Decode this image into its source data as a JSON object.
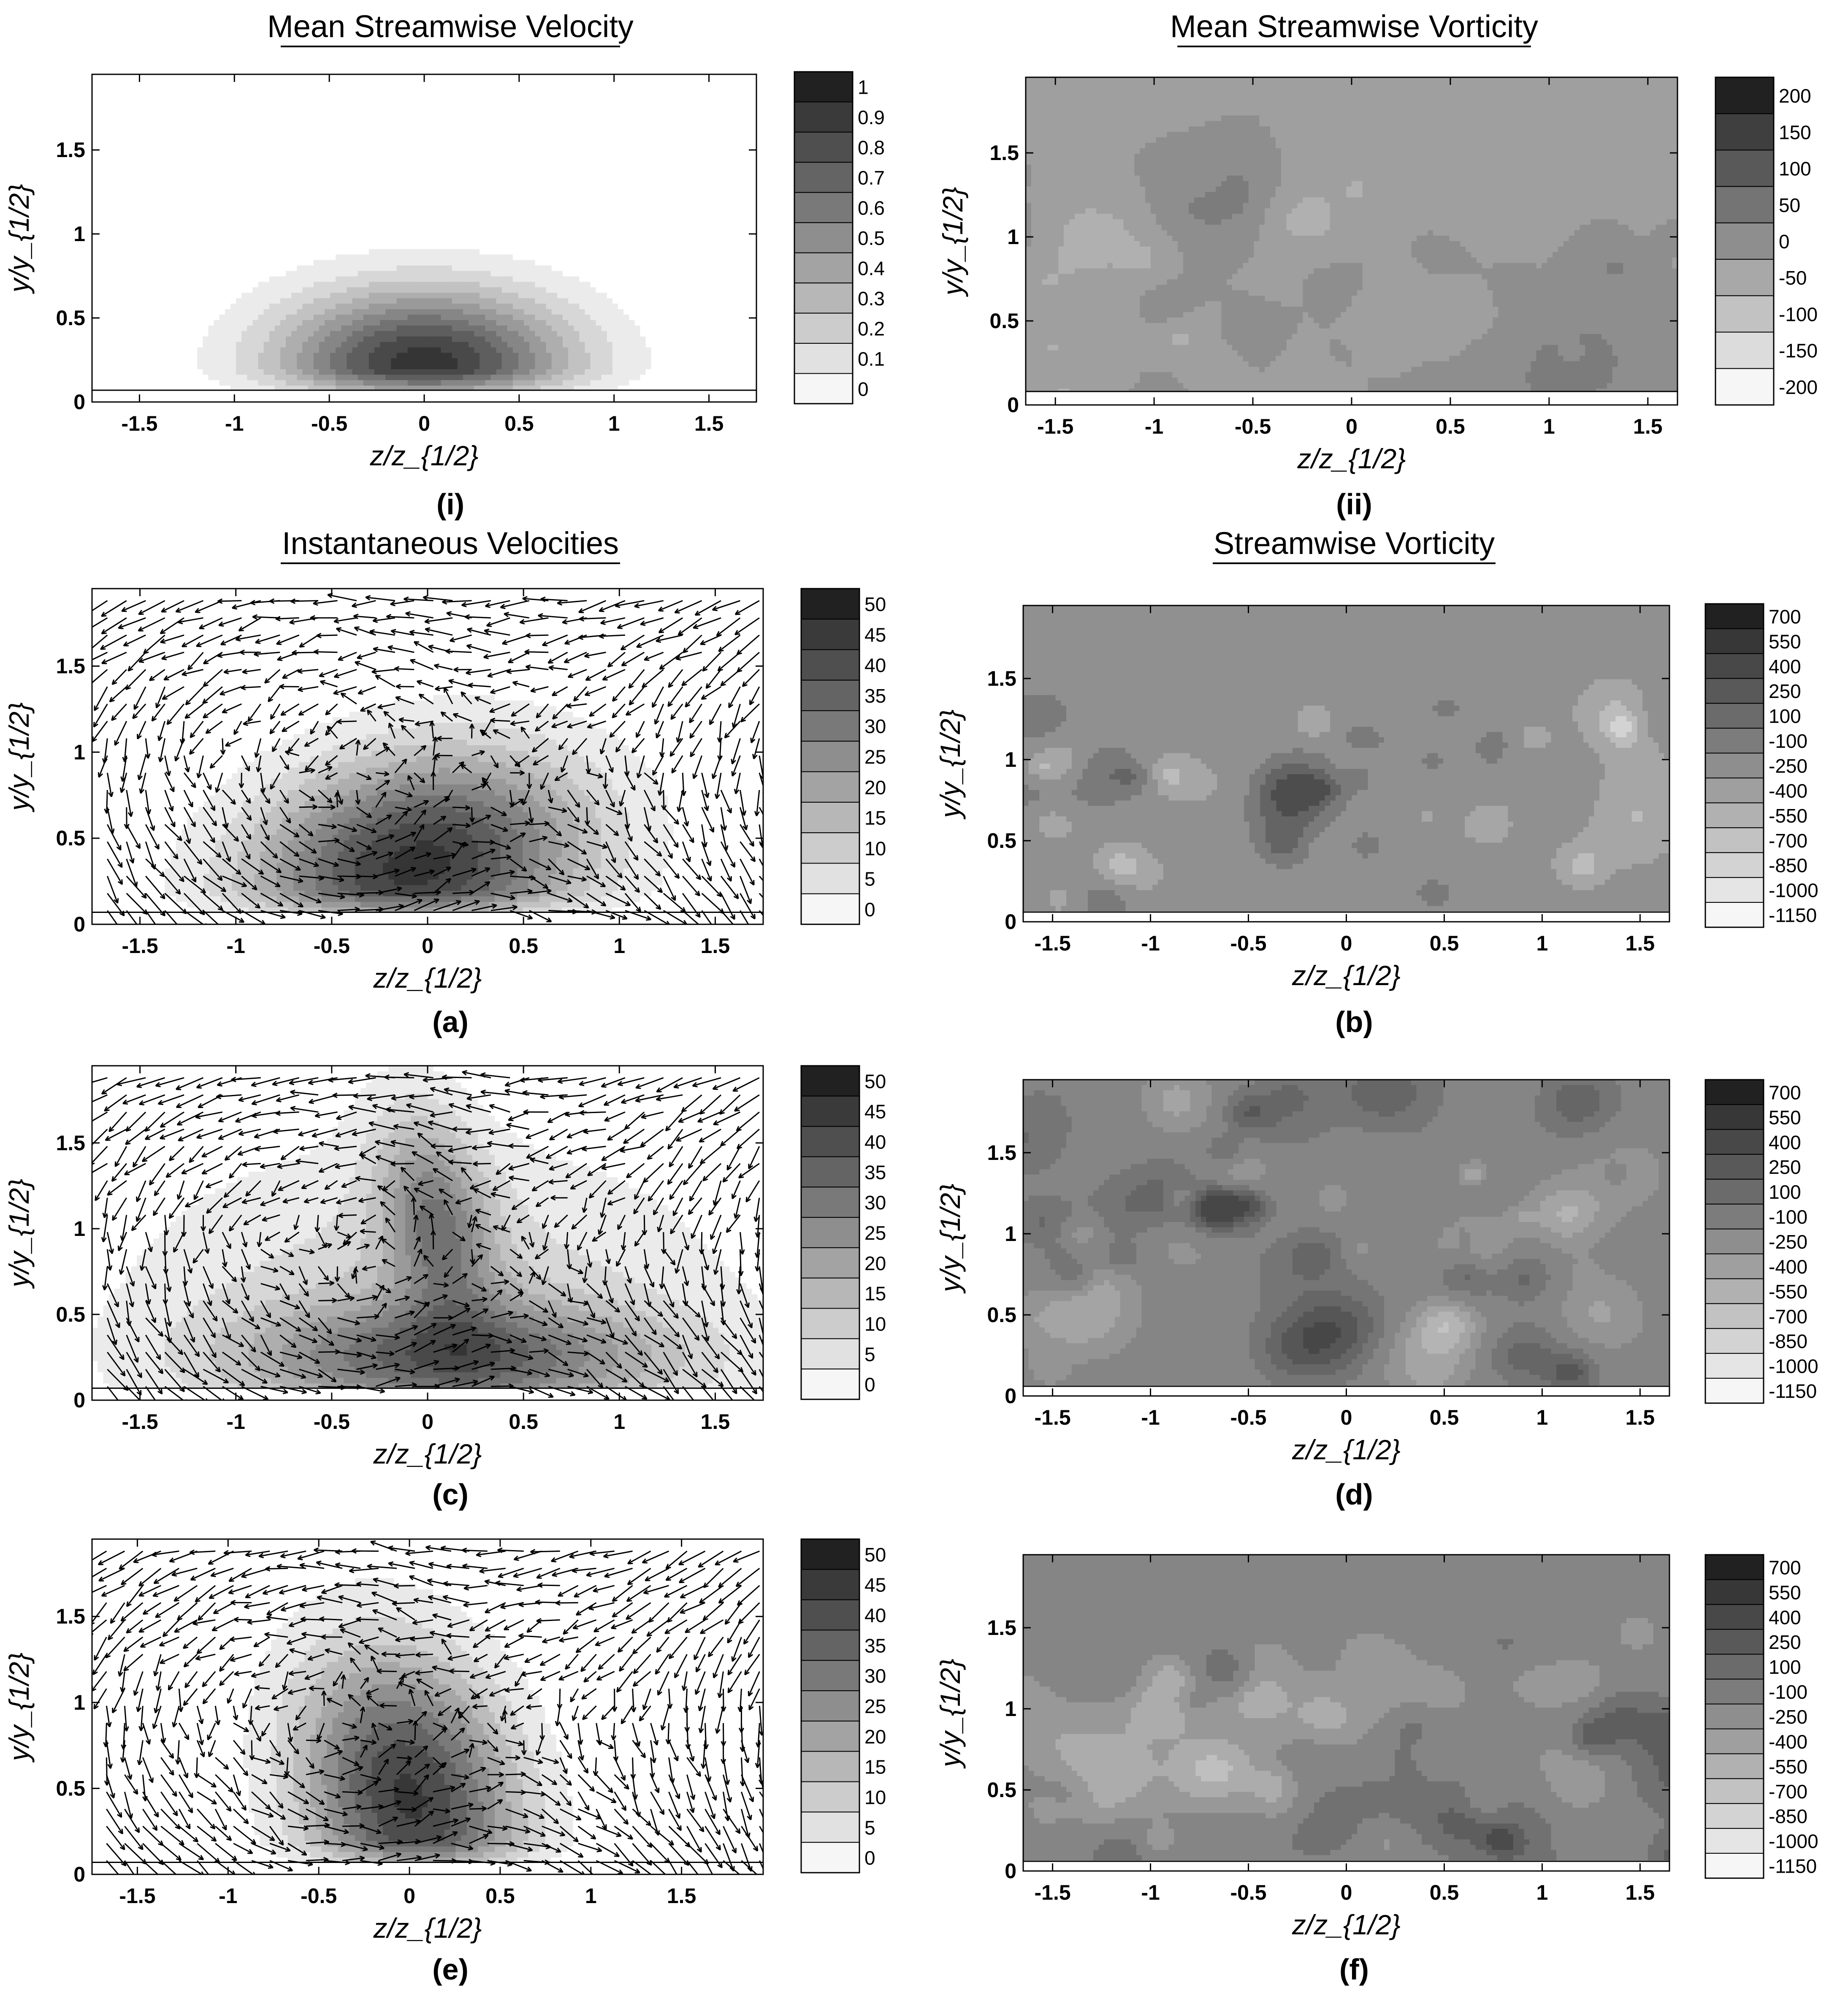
{
  "chart_data": [
    {
      "id": "i",
      "caption": "(i)",
      "title": "Mean Streamwise Velocity",
      "type": "contour",
      "xlabel": "z/z_{1/2}",
      "ylabel": "y/y_{1/2}",
      "xlim": [
        -1.75,
        1.75
      ],
      "ylim": [
        0,
        1.95
      ],
      "xticks": [
        -1.5,
        -1,
        -0.5,
        0,
        0.5,
        1,
        1.5
      ],
      "xtick_labels": [
        "-1.5",
        "-1",
        "-0.5",
        "0",
        "0.5",
        "1",
        "1.5"
      ],
      "yticks": [
        0,
        0.5,
        1,
        1.5
      ],
      "ytick_labels": [
        "0",
        "0.5",
        "1",
        "1.5"
      ],
      "colorbar_labels": [
        "1",
        "0.9",
        "0.8",
        "0.7",
        "0.6",
        "0.5",
        "0.4",
        "0.3",
        "0.2",
        "0.1",
        "0"
      ],
      "field": {
        "kind": "gauss",
        "cx": 0,
        "cy": 0.22,
        "sx": 0.55,
        "sy": 0.32,
        "amp": 1.05,
        "ymin": 0.07
      },
      "levels": [
        0.1,
        0.2,
        0.3,
        0.4,
        0.5,
        0.6,
        0.7,
        0.8,
        0.9,
        1.0
      ],
      "vectors": false
    },
    {
      "id": "ii",
      "caption": "(ii)",
      "title": "Mean Streamwise Vorticity",
      "type": "contour",
      "xlabel": "z/z_{1/2}",
      "ylabel": "y/y_{1/2}",
      "xlim": [
        -1.65,
        1.65
      ],
      "ylim": [
        0,
        1.95
      ],
      "xticks": [
        -1.5,
        -1,
        -0.5,
        0,
        0.5,
        1,
        1.5
      ],
      "xtick_labels": [
        "-1.5",
        "-1",
        "-0.5",
        "0",
        "0.5",
        "1",
        "1.5"
      ],
      "yticks": [
        0,
        0.5,
        1,
        1.5
      ],
      "ytick_labels": [
        "0",
        "0.5",
        "1",
        "1.5"
      ],
      "colorbar_labels": [
        "200",
        "150",
        "100",
        "50",
        "0",
        "-50",
        "-100",
        "-150",
        "-200"
      ],
      "field": {
        "kind": "noise",
        "base": 0,
        "scale": 60,
        "seed": 11,
        "ymin": 0.08
      },
      "levels": [
        -150,
        -100,
        -50,
        0,
        50,
        100,
        150,
        200
      ],
      "vectors": false
    },
    {
      "id": "a",
      "caption": "(a)",
      "title": "Instantaneous Velocities",
      "type": "contour+quiver",
      "xlabel": "z/z_{1/2}",
      "ylabel": "y/y_{1/2}",
      "xlim": [
        -1.75,
        1.75
      ],
      "ylim": [
        0,
        1.95
      ],
      "xticks": [
        -1.5,
        -1,
        -0.5,
        0,
        0.5,
        1,
        1.5
      ],
      "xtick_labels": [
        "-1.5",
        "-1",
        "-0.5",
        "0",
        "0.5",
        "1",
        "1.5"
      ],
      "yticks": [
        0,
        0.5,
        1,
        1.5
      ],
      "ytick_labels": [
        "0",
        "0.5",
        "1",
        "1.5"
      ],
      "colorbar_labels": [
        "50",
        "45",
        "40",
        "35",
        "30",
        "25",
        "20",
        "15",
        "10",
        "5",
        "0"
      ],
      "field": {
        "kind": "gauss",
        "cx": -0.05,
        "cy": 0.35,
        "sx": 0.6,
        "sy": 0.45,
        "amp": 52,
        "skew": 0.25,
        "ymin": 0.07
      },
      "levels": [
        5,
        10,
        15,
        20,
        25,
        30,
        35,
        40,
        45,
        50
      ],
      "vectors": true
    },
    {
      "id": "b",
      "caption": "(b)",
      "title": "Streamwise Vorticity",
      "type": "contour",
      "xlabel": "z/z_{1/2}",
      "ylabel": "y/y_{1/2}",
      "xlim": [
        -1.65,
        1.65
      ],
      "ylim": [
        0,
        1.95
      ],
      "xticks": [
        -1.5,
        -1,
        -0.5,
        0,
        0.5,
        1,
        1.5
      ],
      "xtick_labels": [
        "-1.5",
        "-1",
        "-0.5",
        "0",
        "0.5",
        "1",
        "1.5"
      ],
      "yticks": [
        0,
        0.5,
        1,
        1.5
      ],
      "ytick_labels": [
        "0",
        "0.5",
        "1",
        "1.5"
      ],
      "colorbar_labels": [
        "700",
        "550",
        "400",
        "250",
        "100",
        "-100",
        "-250",
        "-400",
        "-550",
        "-700",
        "-850",
        "-1000",
        "-1150"
      ],
      "field": {
        "kind": "noise",
        "base": 0,
        "scale": 280,
        "seed": 23,
        "ymin": 0.06,
        "top": 1.3
      },
      "levels": [
        -400,
        -250,
        -100,
        100,
        250,
        400
      ],
      "vectors": false
    },
    {
      "id": "c",
      "caption": "(c)",
      "title": "",
      "type": "contour+quiver",
      "xlabel": "z/z_{1/2}",
      "ylabel": "y/y_{1/2}",
      "xlim": [
        -1.75,
        1.75
      ],
      "ylim": [
        0,
        1.95
      ],
      "xticks": [
        -1.5,
        -1,
        -0.5,
        0,
        0.5,
        1,
        1.5
      ],
      "xtick_labels": [
        "-1.5",
        "-1",
        "-0.5",
        "0",
        "0.5",
        "1",
        "1.5"
      ],
      "yticks": [
        0,
        0.5,
        1,
        1.5
      ],
      "ytick_labels": [
        "0",
        "0.5",
        "1",
        "1.5"
      ],
      "colorbar_labels": [
        "50",
        "45",
        "40",
        "35",
        "30",
        "25",
        "20",
        "15",
        "10",
        "5",
        "0"
      ],
      "field": {
        "kind": "mushroom",
        "amp": 50,
        "ymin": 0.07
      },
      "levels": [
        5,
        10,
        15,
        20,
        25,
        30,
        35,
        40,
        45,
        50
      ],
      "vectors": true
    },
    {
      "id": "d",
      "caption": "(d)",
      "title": "",
      "type": "contour",
      "xlabel": "z/z_{1/2}",
      "ylabel": "y/y_{1/2}",
      "xlim": [
        -1.65,
        1.65
      ],
      "ylim": [
        0,
        1.95
      ],
      "xticks": [
        -1.5,
        -1,
        -0.5,
        0,
        0.5,
        1,
        1.5
      ],
      "xtick_labels": [
        "-1.5",
        "-1",
        "-0.5",
        "0",
        "0.5",
        "1",
        "1.5"
      ],
      "yticks": [
        0,
        0.5,
        1,
        1.5
      ],
      "ytick_labels": [
        "0",
        "0.5",
        "1",
        "1.5"
      ],
      "colorbar_labels": [
        "700",
        "550",
        "400",
        "250",
        "100",
        "-100",
        "-250",
        "-400",
        "-550",
        "-700",
        "-850",
        "-1000",
        "-1150"
      ],
      "field": {
        "kind": "noise",
        "base": 0,
        "scale": 420,
        "seed": 37,
        "ymin": 0.06,
        "top": 1.85
      },
      "levels": [
        -700,
        -550,
        -400,
        -250,
        -100,
        100,
        250,
        400,
        550
      ],
      "vectors": false
    },
    {
      "id": "e",
      "caption": "(e)",
      "title": "",
      "type": "contour+quiver",
      "xlabel": "z/z_{1/2}",
      "ylabel": "y/y_{1/2}",
      "xlim": [
        -1.75,
        1.95
      ],
      "ylim": [
        0,
        1.95
      ],
      "xticks": [
        -1.5,
        -1,
        -0.5,
        0,
        0.5,
        1,
        1.5
      ],
      "xtick_labels": [
        "-1.5",
        "-1",
        "-0.5",
        "0",
        "0.5",
        "1",
        "1.5"
      ],
      "yticks": [
        0,
        0.5,
        1,
        1.5
      ],
      "ytick_labels": [
        "0",
        "0.5",
        "1",
        "1.5"
      ],
      "colorbar_labels": [
        "50",
        "45",
        "40",
        "35",
        "30",
        "25",
        "20",
        "15",
        "10",
        "5",
        "0"
      ],
      "field": {
        "kind": "gauss",
        "cx": 0.0,
        "cy": 0.45,
        "sx": 0.42,
        "sy": 0.6,
        "amp": 46,
        "skew": -0.15,
        "ymin": 0.07
      },
      "levels": [
        5,
        10,
        15,
        20,
        25,
        30,
        35,
        40,
        45
      ],
      "vectors": true
    },
    {
      "id": "f",
      "caption": "(f)",
      "title": "",
      "type": "contour",
      "xlabel": "z/z_{1/2}",
      "ylabel": "y/y_{1/2}",
      "xlim": [
        -1.65,
        1.65
      ],
      "ylim": [
        0,
        1.95
      ],
      "xticks": [
        -1.5,
        -1,
        -0.5,
        0,
        0.5,
        1,
        1.5
      ],
      "xtick_labels": [
        "-1.5",
        "-1",
        "-0.5",
        "0",
        "0.5",
        "1",
        "1.5"
      ],
      "yticks": [
        0,
        0.5,
        1,
        1.5
      ],
      "ytick_labels": [
        "0",
        "0.5",
        "1",
        "1.5"
      ],
      "colorbar_labels": [
        "700",
        "550",
        "400",
        "250",
        "100",
        "-100",
        "-250",
        "-400",
        "-550",
        "-700",
        "-850",
        "-1000",
        "-1150"
      ],
      "field": {
        "kind": "noise",
        "base": 0,
        "scale": 320,
        "seed": 53,
        "ymin": 0.06,
        "top": 1.45
      },
      "levels": [
        -550,
        -400,
        -250,
        -100,
        100,
        250,
        400
      ],
      "vectors": false
    }
  ]
}
